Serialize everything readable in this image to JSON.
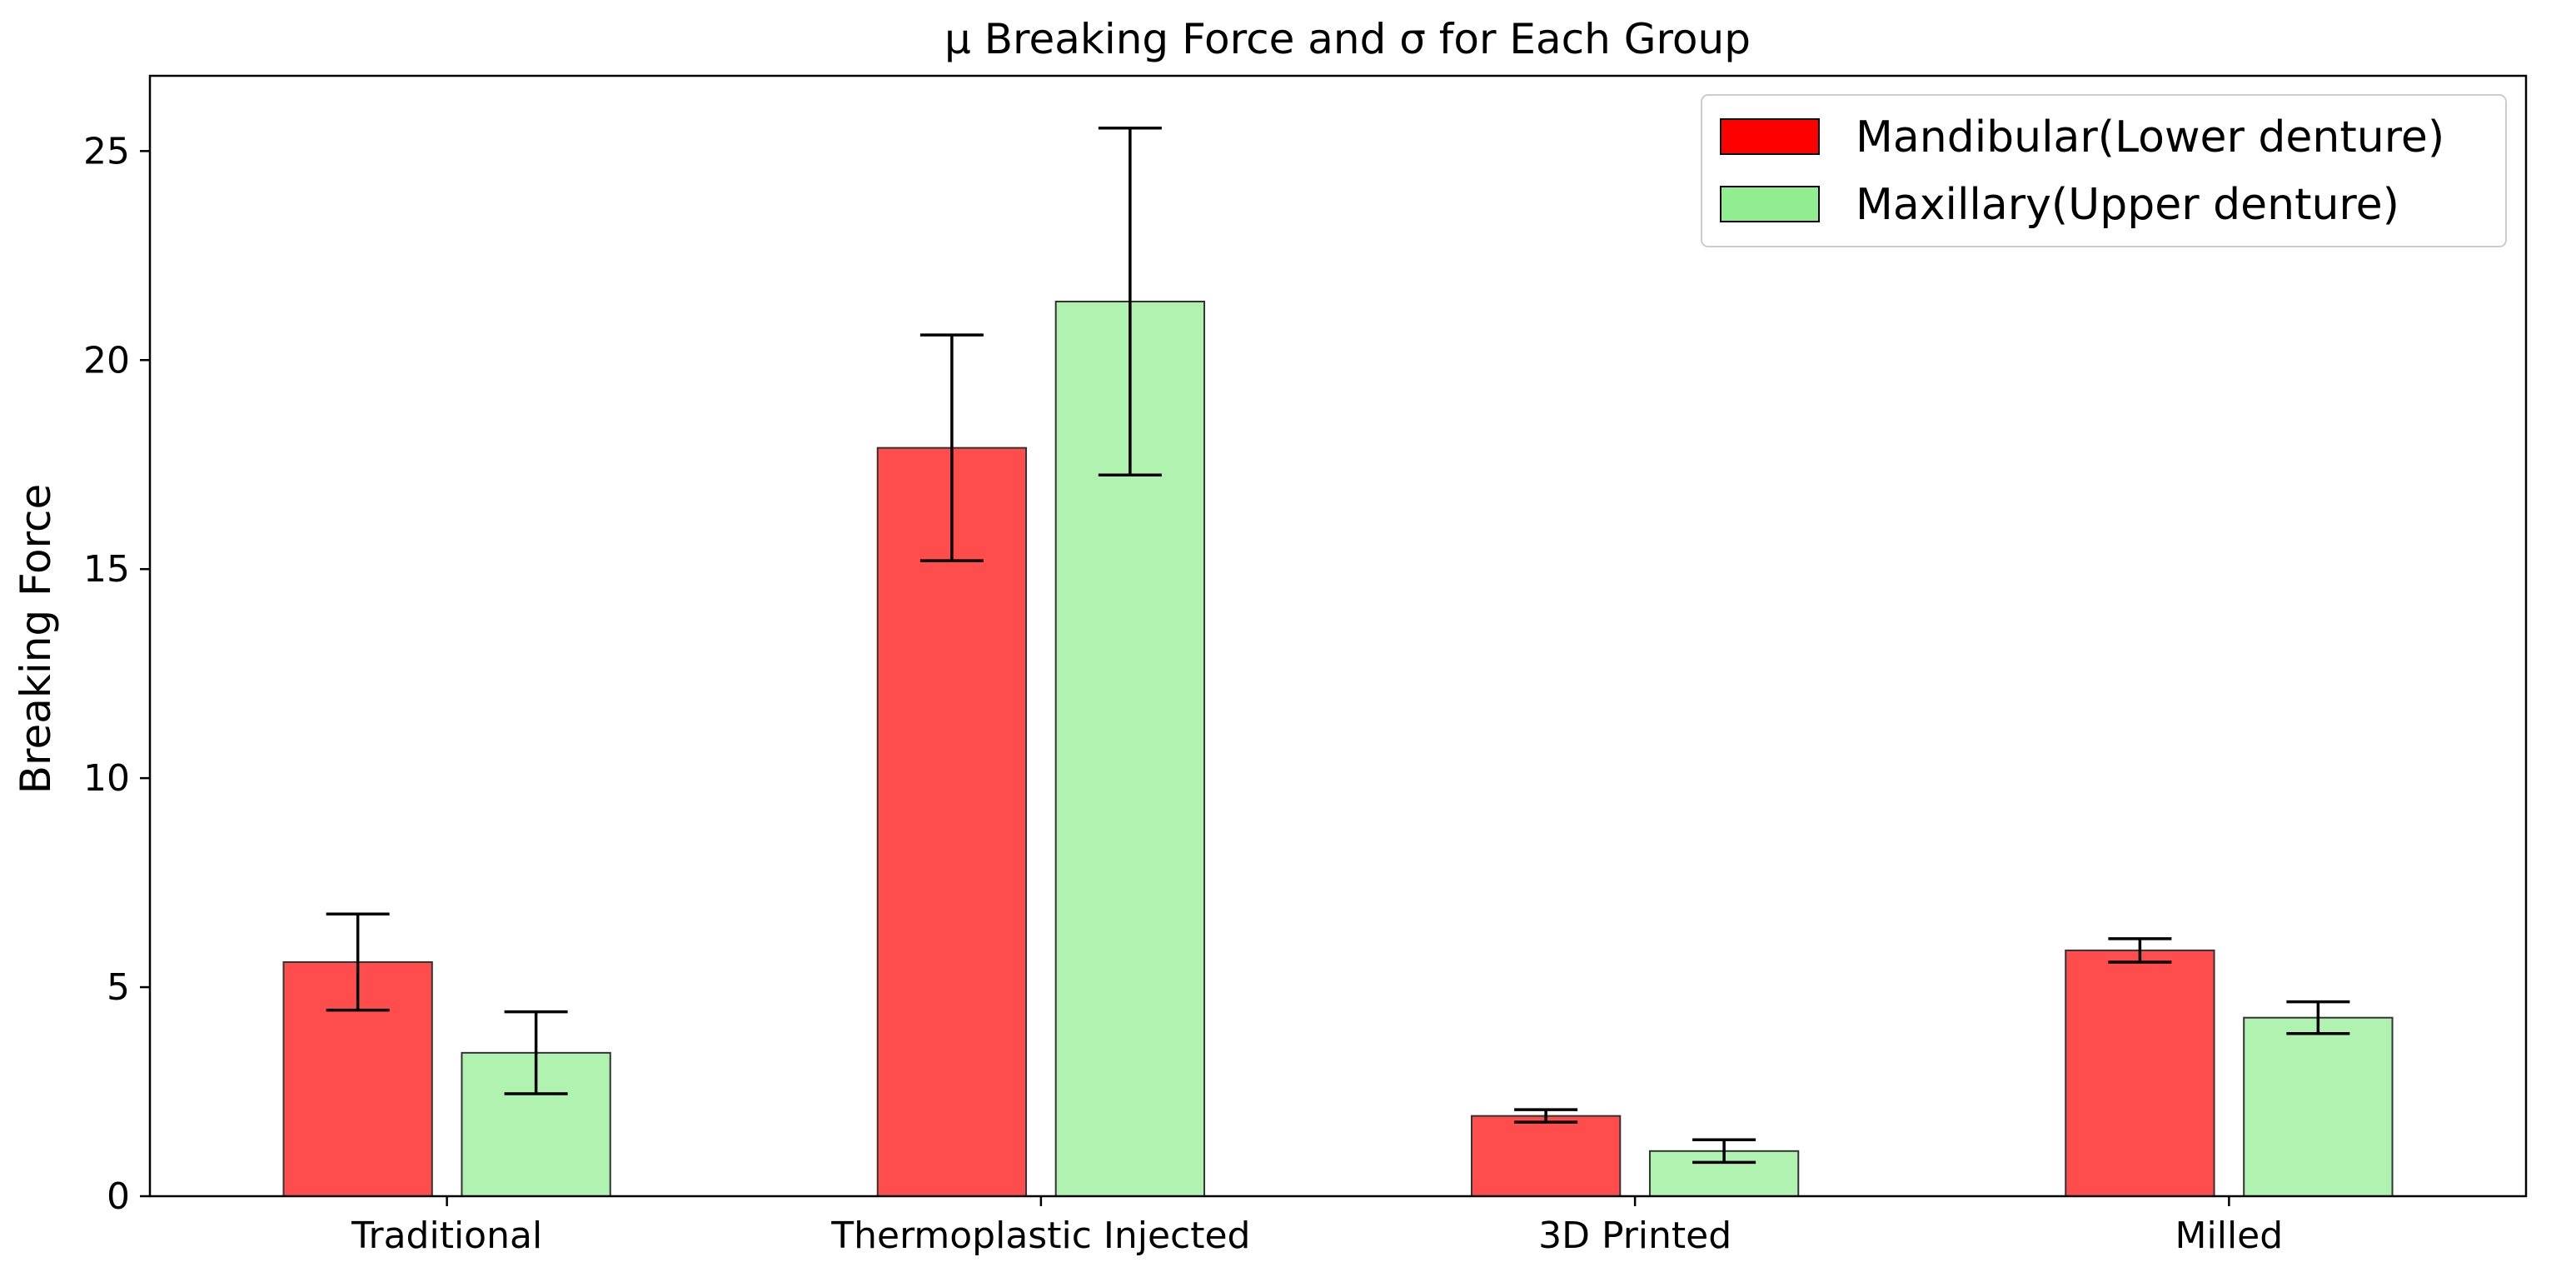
{
  "chart_data": {
    "type": "bar",
    "title": "μ Breaking Force and σ for Each Group",
    "xlabel": "",
    "ylabel": "Breaking Force",
    "categories": [
      "Traditional",
      "Thermoplastic Injected",
      "3D Printed",
      "Milled"
    ],
    "ylim": [
      0,
      26.8
    ],
    "yticks": [
      0,
      5,
      10,
      15,
      20,
      25
    ],
    "ytick_labels": [
      "0",
      "5",
      "10",
      "15",
      "20",
      "25"
    ],
    "grid": false,
    "legend_position": "top-right",
    "series": [
      {
        "name": "Mandibular(Lower denture)",
        "color": "#ff4d4d",
        "values": [
          5.6,
          17.9,
          1.92,
          5.88
        ],
        "errors": [
          1.15,
          2.7,
          0.15,
          0.28
        ]
      },
      {
        "name": "Maxillary(Upper denture)",
        "color": "#b0f2b0",
        "values": [
          3.43,
          21.4,
          1.08,
          4.27
        ],
        "errors": [
          0.98,
          4.15,
          0.27,
          0.38
        ]
      }
    ]
  },
  "colors": {
    "edge": "#333333",
    "axis": "#000000",
    "legend_swatch_mandibular": "#ff0000",
    "legend_swatch_maxillary": "#90ee90"
  }
}
